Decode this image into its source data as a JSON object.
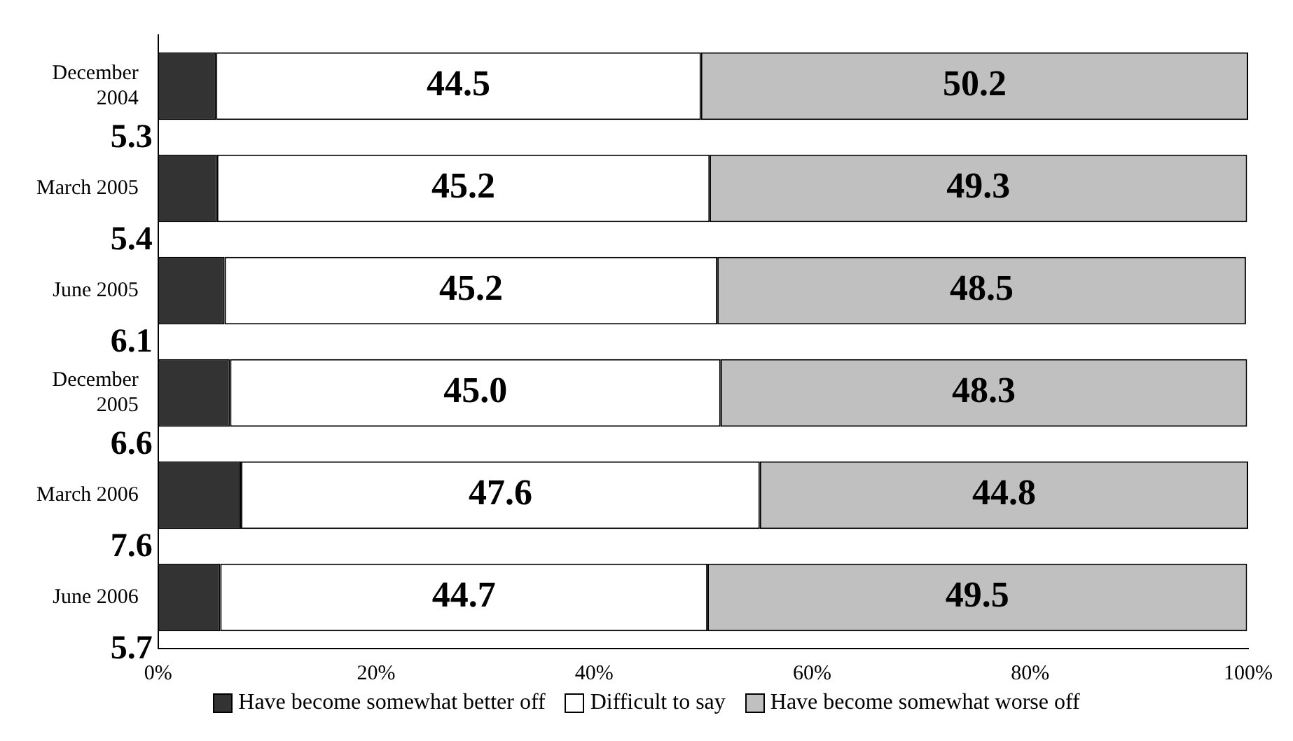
{
  "chart_data": {
    "type": "bar",
    "orientation": "horizontal",
    "stacked": true,
    "categories": [
      "December 2004",
      "March 2005",
      "June 2005",
      "December 2005",
      "March 2006",
      "June 2006"
    ],
    "series": [
      {
        "name": "Have become somewhat better off",
        "color": "#333333",
        "values": [
          5.3,
          5.4,
          6.1,
          6.6,
          7.6,
          5.7
        ],
        "value_labels": [
          "5.3",
          "5.4",
          "6.1",
          "6.6",
          "7.6",
          "5.7"
        ]
      },
      {
        "name": "Difficult to say",
        "color": "#ffffff",
        "values": [
          44.5,
          45.2,
          45.2,
          45.0,
          47.6,
          44.7
        ],
        "value_labels": [
          "44.5",
          "45.2",
          "45.2",
          "45.0",
          "47.6",
          "44.7"
        ]
      },
      {
        "name": "Have become somewhat worse off",
        "color": "#c0c0c0",
        "values": [
          50.2,
          49.3,
          48.5,
          48.3,
          44.8,
          49.5
        ],
        "value_labels": [
          "50.2",
          "49.3",
          "48.5",
          "48.3",
          "44.8",
          "49.5"
        ]
      }
    ],
    "xlim": [
      0,
      100
    ],
    "xticks": [
      {
        "value": 0,
        "label": "0%"
      },
      {
        "value": 20,
        "label": "20%"
      },
      {
        "value": 40,
        "label": "40%"
      },
      {
        "value": 60,
        "label": "60%"
      },
      {
        "value": 80,
        "label": "80%"
      },
      {
        "value": 100,
        "label": "100%"
      }
    ],
    "grid": false,
    "legend": "bottom"
  }
}
